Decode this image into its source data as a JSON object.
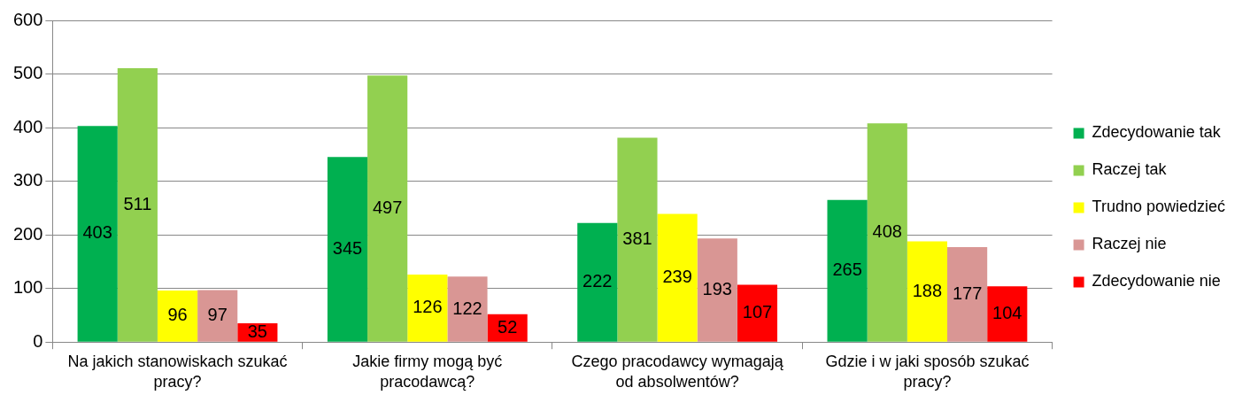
{
  "chart_data": {
    "type": "bar",
    "categories": [
      "Na jakich stanowiskach szukać pracy?",
      "Jakie firmy mogą być pracodawcą?",
      "Czego pracodawcy wymagają od absolwentów?",
      "Gdzie i w jaki sposób szukać pracy?"
    ],
    "series": [
      {
        "name": "Zdecydowanie tak",
        "color": "#00b050",
        "values": [
          403,
          345,
          222,
          265
        ]
      },
      {
        "name": "Raczej tak",
        "color": "#92d050",
        "values": [
          511,
          497,
          381,
          408
        ]
      },
      {
        "name": "Trudno powiedzieć",
        "color": "#ffff00",
        "values": [
          96,
          126,
          239,
          188
        ]
      },
      {
        "name": "Raczej nie",
        "color": "#d99694",
        "values": [
          97,
          122,
          193,
          177
        ]
      },
      {
        "name": "Zdecydowanie nie",
        "color": "#ff0000",
        "values": [
          35,
          52,
          107,
          104
        ]
      }
    ],
    "ylim": [
      0,
      600
    ],
    "yticks": [
      0,
      100,
      200,
      300,
      400,
      500,
      600
    ],
    "grid": "y",
    "legend": "right",
    "data_labels": true
  }
}
